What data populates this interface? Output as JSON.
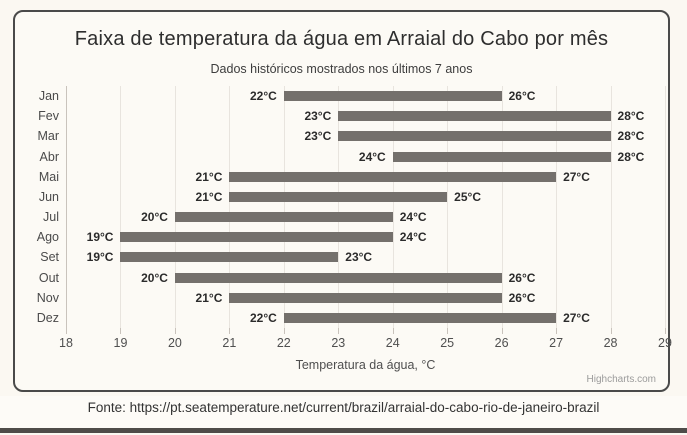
{
  "credit": "Highcharts.com",
  "footer": {
    "source_text": "Fonte: https://pt.seatemperature.net/current/brazil/arraial-do-cabo-rio-de-janeiro-brazil"
  },
  "chart_data": {
    "type": "bar",
    "subtype": "horizontal-range",
    "title": "Faixa de temperatura da água em Arraial do Cabo por mês",
    "subtitle": "Dados históricos mostrados nos últimos 7 anos",
    "xlabel": "Temperatura da água, °C",
    "ylabel": "",
    "categories": [
      "Jan",
      "Fev",
      "Mar",
      "Abr",
      "Mai",
      "Jun",
      "Jul",
      "Ago",
      "Set",
      "Out",
      "Nov",
      "Dez"
    ],
    "series": [
      {
        "name": "Faixa de temperatura da água",
        "low": [
          22,
          23,
          23,
          24,
          21,
          21,
          20,
          19,
          19,
          20,
          21,
          22
        ],
        "high": [
          26,
          28,
          28,
          28,
          27,
          25,
          24,
          24,
          23,
          26,
          26,
          27
        ]
      }
    ],
    "unit": "°C",
    "xlim": [
      18,
      29
    ],
    "x_ticks": [
      18,
      19,
      20,
      21,
      22,
      23,
      24,
      25,
      26,
      27,
      28,
      29
    ],
    "grid": "vertical-only",
    "legend": "none",
    "colors": {
      "bar": "#74706c",
      "grid": "#e8e4de",
      "axis": "#c9c3bc",
      "value_label": "#2b2b2b",
      "page_bg": "#fbf8f2",
      "box_border": "#4a4a4a"
    }
  }
}
